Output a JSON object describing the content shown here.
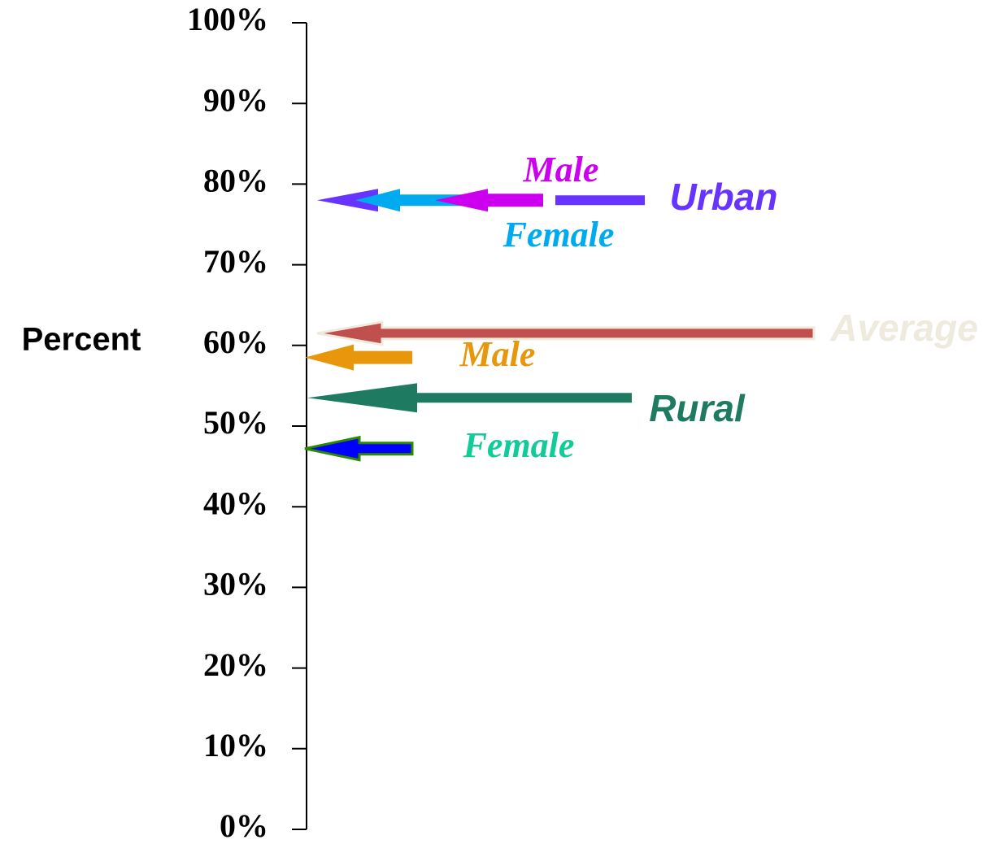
{
  "chart_data": {
    "type": "arrow",
    "ylabel": "Percent",
    "ylim": [
      0,
      100
    ],
    "yticks": [
      {
        "value": 0,
        "label": "0%"
      },
      {
        "value": 10,
        "label": "10%"
      },
      {
        "value": 20,
        "label": "20%"
      },
      {
        "value": 30,
        "label": "30%"
      },
      {
        "value": 40,
        "label": "40%"
      },
      {
        "value": 50,
        "label": "50%"
      },
      {
        "value": 60,
        "label": "60%"
      },
      {
        "value": 70,
        "label": "70%"
      },
      {
        "value": 80,
        "label": "80%"
      },
      {
        "value": 90,
        "label": "90%"
      },
      {
        "value": 100,
        "label": "100%"
      }
    ],
    "series": [
      {
        "name": "Urban",
        "color": "#6633ff",
        "values": [
          78
        ]
      },
      {
        "name": "Female",
        "color": "#00aaee",
        "values": [
          78
        ]
      },
      {
        "name": "Male",
        "color": "#cc00ee",
        "values": [
          78
        ]
      },
      {
        "name": "Average",
        "color": "#c0504d",
        "values": [
          61.5
        ]
      },
      {
        "name": "Male",
        "color": "#e8960c",
        "values": [
          58.5
        ]
      },
      {
        "name": "Rural",
        "color": "#1f7a62",
        "values": [
          53.5
        ]
      },
      {
        "name": "Female",
        "color": "#0000ff",
        "values": [
          47.2
        ]
      }
    ]
  }
}
